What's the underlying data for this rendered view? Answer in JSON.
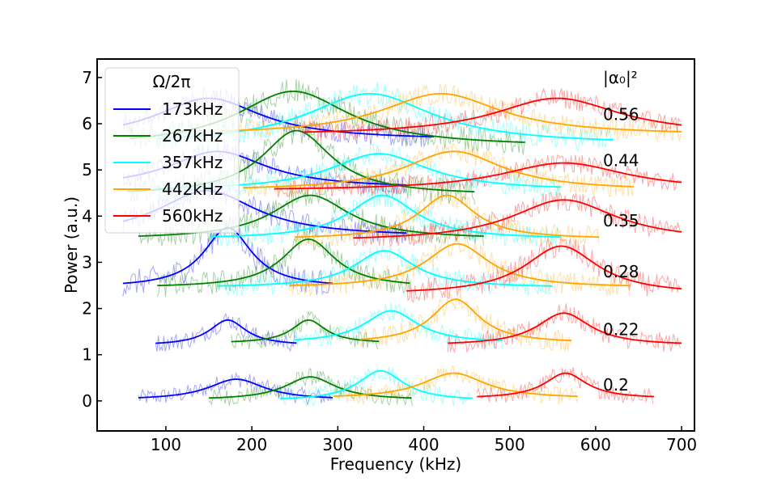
{
  "chart_data": {
    "type": "line",
    "xlabel": "Frequency (kHz)",
    "ylabel": "Power (a.u.)",
    "xlim": [
      20,
      715
    ],
    "ylim": [
      -0.65,
      7.4
    ],
    "xticks": [
      100,
      200,
      300,
      400,
      500,
      600,
      700
    ],
    "yticks": [
      0,
      1,
      2,
      3,
      4,
      5,
      6,
      7
    ],
    "grid": false,
    "legend": {
      "title": "Ω/2π",
      "position": "top-left",
      "entries": [
        {
          "label": "173kHz",
          "color": "#0000ff"
        },
        {
          "label": "267kHz",
          "color": "#008000"
        },
        {
          "label": "357kHz",
          "color": "#00ffff"
        },
        {
          "label": "442kHz",
          "color": "#ffa500"
        },
        {
          "label": "560kHz",
          "color": "#ff0000"
        }
      ]
    },
    "annotation_header": "|α₀|²",
    "rows": [
      {
        "label": "0.2",
        "label_y": 0.35,
        "fits": [
          {
            "series": "173kHz",
            "center": 182,
            "amp": 0.45,
            "width": 40,
            "base": 0.02,
            "x_range": [
              68,
              295
            ]
          },
          {
            "series": "267kHz",
            "center": 268,
            "amp": 0.5,
            "width": 36,
            "base": 0.02,
            "x_range": [
              150,
              387
            ]
          },
          {
            "series": "357kHz",
            "center": 350,
            "amp": 0.65,
            "width": 33,
            "base": 0.0,
            "x_range": [
              233,
              457
            ]
          },
          {
            "series": "442kHz",
            "center": 435,
            "amp": 0.55,
            "width": 45,
            "base": 0.05,
            "x_range": [
              295,
              580
            ]
          },
          {
            "series": "560kHz",
            "center": 565,
            "amp": 0.55,
            "width": 30,
            "base": 0.05,
            "x_range": [
              462,
              668
            ]
          }
        ]
      },
      {
        "label": "0.22",
        "label_y": 1.55,
        "fits": [
          {
            "series": "173kHz",
            "center": 172,
            "amp": 0.55,
            "width": 26,
            "base": 1.2,
            "x_range": [
              88,
              252
            ]
          },
          {
            "series": "267kHz",
            "center": 266,
            "amp": 0.5,
            "width": 24,
            "base": 1.25,
            "x_range": [
              176,
              348
            ]
          },
          {
            "series": "357kHz",
            "center": 362,
            "amp": 0.7,
            "width": 38,
            "base": 1.25,
            "x_range": [
              250,
              493
            ]
          },
          {
            "series": "442kHz",
            "center": 437,
            "amp": 0.95,
            "width": 34,
            "base": 1.25,
            "x_range": [
              326,
              572
            ]
          },
          {
            "series": "560kHz",
            "center": 563,
            "amp": 0.7,
            "width": 38,
            "base": 1.2,
            "x_range": [
              428,
              700
            ]
          }
        ]
      },
      {
        "label": "0.28",
        "label_y": 2.8,
        "fits": [
          {
            "series": "173kHz",
            "center": 172,
            "amp": 1.3,
            "width": 34,
            "base": 2.45,
            "x_range": [
              50,
              294
            ]
          },
          {
            "series": "267kHz",
            "center": 266,
            "amp": 1.05,
            "width": 38,
            "base": 2.45,
            "x_range": [
              90,
              385
            ]
          },
          {
            "series": "357kHz",
            "center": 354,
            "amp": 0.8,
            "width": 43,
            "base": 2.45,
            "x_range": [
              160,
              550
            ]
          },
          {
            "series": "442kHz",
            "center": 439,
            "amp": 0.95,
            "width": 45,
            "base": 2.45,
            "x_range": [
              244,
              640
            ]
          },
          {
            "series": "560kHz",
            "center": 560,
            "amp": 1.05,
            "width": 52,
            "base": 2.3,
            "x_range": [
              380,
              700
            ]
          }
        ]
      },
      {
        "label": "0.35",
        "label_y": 3.9,
        "fits": [
          {
            "series": "173kHz",
            "center": 148,
            "amp": 1.0,
            "width": 70,
            "base": 3.55,
            "x_range": [
              50,
              380
            ]
          },
          {
            "series": "267kHz",
            "center": 268,
            "amp": 0.95,
            "width": 55,
            "base": 3.5,
            "x_range": [
              68,
              470
            ]
          },
          {
            "series": "357kHz",
            "center": 352,
            "amp": 0.95,
            "width": 48,
            "base": 3.5,
            "x_range": [
              152,
              560
            ]
          },
          {
            "series": "442kHz",
            "center": 427,
            "amp": 0.95,
            "width": 40,
            "base": 3.5,
            "x_range": [
              250,
              605
            ]
          },
          {
            "series": "560kHz",
            "center": 563,
            "amp": 0.9,
            "width": 75,
            "base": 3.45,
            "x_range": [
              318,
              700
            ]
          }
        ]
      },
      {
        "label": "0.44",
        "label_y": 5.2,
        "fits": [
          {
            "series": "173kHz",
            "center": 160,
            "amp": 0.8,
            "width": 70,
            "base": 4.6,
            "x_range": [
              50,
              380
            ]
          },
          {
            "series": "267kHz",
            "center": 252,
            "amp": 1.4,
            "width": 50,
            "base": 4.45,
            "x_range": [
              55,
              460
            ]
          },
          {
            "series": "357kHz",
            "center": 348,
            "amp": 0.8,
            "width": 70,
            "base": 4.55,
            "x_range": [
              90,
              560
            ]
          },
          {
            "series": "442kHz",
            "center": 435,
            "amp": 0.85,
            "width": 70,
            "base": 4.55,
            "x_range": [
              190,
              645
            ]
          },
          {
            "series": "560kHz",
            "center": 563,
            "amp": 0.6,
            "width": 90,
            "base": 4.55,
            "x_range": [
              226,
              700
            ]
          }
        ]
      },
      {
        "label": "0.56",
        "label_y": 6.2,
        "fits": [
          {
            "series": "173kHz",
            "center": 150,
            "amp": 0.9,
            "width": 75,
            "base": 5.65,
            "x_range": [
              50,
              412
            ]
          },
          {
            "series": "267kHz",
            "center": 248,
            "amp": 1.2,
            "width": 80,
            "base": 5.5,
            "x_range": [
              58,
              518
            ]
          },
          {
            "series": "357kHz",
            "center": 337,
            "amp": 1.1,
            "width": 90,
            "base": 5.55,
            "x_range": [
              90,
              620
            ]
          },
          {
            "series": "442kHz",
            "center": 420,
            "amp": 0.9,
            "width": 85,
            "base": 5.75,
            "x_range": [
              160,
              700
            ]
          },
          {
            "series": "560kHz",
            "center": 555,
            "amp": 0.8,
            "width": 90,
            "base": 5.75,
            "x_range": [
              258,
              700
            ]
          }
        ]
      }
    ]
  }
}
